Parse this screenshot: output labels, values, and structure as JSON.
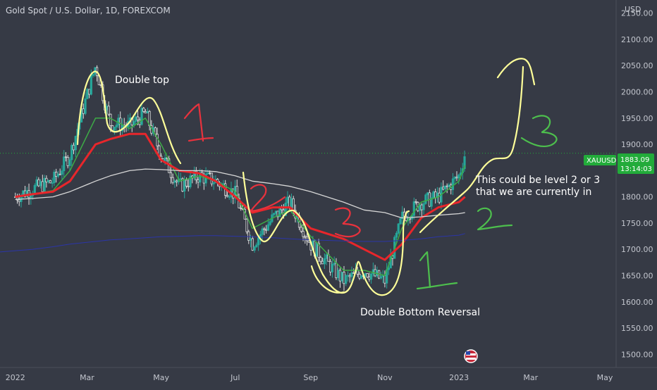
{
  "header": {
    "title": "Gold Spot / U.S. Dollar, 1D, FOREXCOM",
    "currency": "USD"
  },
  "price_tag": {
    "symbol": "XAUUSD",
    "price": "1883.09",
    "countdown": "13:14:03",
    "color": "#22ab3a"
  },
  "annotations": {
    "double_top": "Double top",
    "double_bottom": "Double Bottom Reversal",
    "level_line1": "This could be level 2 or 3",
    "level_line2": "that we are currently in",
    "hand_numbers": [
      "1",
      "2",
      "3",
      "1",
      "2",
      "3"
    ]
  },
  "colors": {
    "background": "#363a45",
    "up_candle": "#26a69a",
    "down_candle": "#e0e0e0",
    "ma_fast": "#3dab46",
    "ma_mid": "#e8262b",
    "ma_slow": "#d7d7d7",
    "ma_long": "#2b35a8",
    "marker_yellow": "#ffff99",
    "marker_red": "#e8323d",
    "marker_green": "#4dbf4d"
  },
  "chart_data": {
    "type": "line",
    "symbol": "XAUUSD",
    "interval": "1D",
    "x_ticks": [
      "2022",
      "Mar",
      "May",
      "Jul",
      "Sep",
      "Nov",
      "2023",
      "Mar",
      "May"
    ],
    "y_ticks": [
      "2150.00",
      "2100.00",
      "2050.00",
      "2000.00",
      "1950.00",
      "1900.00",
      "1850.00",
      "1800.00",
      "1750.00",
      "1700.00",
      "1650.00",
      "1600.00",
      "1550.00",
      "1500.00"
    ],
    "ylim": [
      1475,
      2175
    ],
    "x": [
      "2022-01-01",
      "2022-01-15",
      "2022-02-01",
      "2022-02-15",
      "2022-03-08",
      "2022-03-20",
      "2022-04-05",
      "2022-04-18",
      "2022-05-01",
      "2022-05-16",
      "2022-06-01",
      "2022-06-15",
      "2022-07-01",
      "2022-07-15",
      "2022-08-01",
      "2022-08-15",
      "2022-09-01",
      "2022-09-28",
      "2022-10-15",
      "2022-11-01",
      "2022-11-15",
      "2022-12-01",
      "2022-12-15",
      "2023-01-01",
      "2023-01-06"
    ],
    "close": [
      1800,
      1815,
      1830,
      1880,
      2050,
      1940,
      1935,
      1960,
      1880,
      1820,
      1840,
      1830,
      1805,
      1710,
      1760,
      1790,
      1710,
      1640,
      1660,
      1640,
      1760,
      1790,
      1800,
      1840,
      1883
    ],
    "series": [
      {
        "name": "",
        "values": [
          1800,
          1805,
          1812,
          1850,
          1950,
          1950,
          1930,
          1950,
          1900,
          1830,
          1840,
          1830,
          1810,
          1740,
          1760,
          1775,
          1725,
          1660,
          1660,
          1650,
          1740,
          1790,
          1800,
          1830,
          1860
        ]
      },
      {
        "name": "",
        "values": [
          1800,
          1805,
          1810,
          1830,
          1900,
          1910,
          1920,
          1920,
          1870,
          1850,
          1845,
          1830,
          1800,
          1770,
          1780,
          1780,
          1740,
          1720,
          1700,
          1680,
          1710,
          1760,
          1780,
          1790,
          1800
        ]
      },
      {
        "name": "",
        "values": [
          1795,
          1797,
          1800,
          1810,
          1830,
          1840,
          1850,
          1853,
          1852,
          1850,
          1850,
          1848,
          1840,
          1830,
          1825,
          1820,
          1810,
          1790,
          1775,
          1770,
          1760,
          1762,
          1765,
          1768,
          1770
        ]
      },
      {
        "name": "",
        "values": [
          1695,
          1700,
          1705,
          1710,
          1715,
          1718,
          1720,
          1722,
          1724,
          1725,
          1726,
          1726,
          1725,
          1724,
          1722,
          1720,
          1718,
          1716,
          1715,
          1715,
          1717,
          1720,
          1724,
          1727,
          1730
        ]
      }
    ],
    "grid": false,
    "legend": "none"
  }
}
